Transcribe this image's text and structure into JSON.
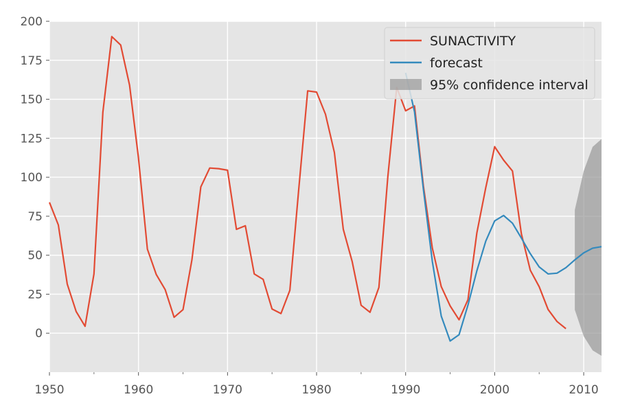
{
  "chart_data": {
    "type": "line",
    "title": "",
    "xlabel": "",
    "ylabel": "",
    "xlim": [
      1950,
      2012
    ],
    "ylim": [
      -25,
      200
    ],
    "x_ticks": [
      1950,
      1960,
      1970,
      1980,
      1990,
      2000,
      2010
    ],
    "y_ticks": [
      0,
      25,
      50,
      75,
      100,
      125,
      150,
      175,
      200
    ],
    "grid": true,
    "legend_position": "top-right",
    "colors": {
      "sunactivity": "#E24A33",
      "forecast": "#348ABD",
      "confidence": "#999999",
      "background": "#E5E5E5"
    },
    "series": [
      {
        "name": "SUNACTIVITY",
        "x": [
          1950,
          1951,
          1952,
          1953,
          1954,
          1955,
          1956,
          1957,
          1958,
          1959,
          1960,
          1961,
          1962,
          1963,
          1964,
          1965,
          1966,
          1967,
          1968,
          1969,
          1970,
          1971,
          1972,
          1973,
          1974,
          1975,
          1976,
          1977,
          1978,
          1979,
          1980,
          1981,
          1982,
          1983,
          1984,
          1985,
          1986,
          1987,
          1988,
          1989,
          1990,
          1991,
          1992,
          1993,
          1994,
          1995,
          1996,
          1997,
          1998,
          1999,
          2000,
          2001,
          2002,
          2003,
          2004,
          2005,
          2006,
          2007,
          2008
        ],
        "values": [
          83.9,
          69.4,
          31.5,
          13.9,
          4.4,
          38.0,
          141.7,
          190.2,
          184.8,
          159.0,
          112.3,
          53.9,
          37.6,
          27.9,
          10.2,
          15.1,
          47.0,
          93.8,
          105.9,
          105.5,
          104.5,
          66.6,
          68.9,
          38.0,
          34.5,
          15.5,
          12.6,
          27.5,
          92.5,
          155.4,
          154.6,
          140.4,
          115.9,
          66.6,
          45.9,
          17.9,
          13.4,
          29.4,
          100.2,
          157.6,
          142.6,
          145.7,
          94.3,
          54.6,
          29.9,
          17.5,
          8.6,
          21.5,
          64.3,
          93.3,
          119.6,
          111.0,
          104.0,
          63.7,
          40.4,
          29.8,
          15.2,
          7.5,
          2.9
        ]
      },
      {
        "name": "forecast",
        "x": [
          1990,
          1991,
          1992,
          1993,
          1994,
          1995,
          1996,
          1997,
          1998,
          1999,
          2000,
          2001,
          2002,
          2003,
          2004,
          2005,
          2006,
          2007,
          2008,
          2009,
          2010,
          2011,
          2012
        ],
        "values": [
          167.0,
          142.0,
          92.0,
          46.0,
          11.0,
          -5.0,
          -1.0,
          18.0,
          40.0,
          59.0,
          72.0,
          75.5,
          70.5,
          61.0,
          51.0,
          42.5,
          38.0,
          38.5,
          42.0,
          47.0,
          51.5,
          54.5,
          55.5
        ]
      },
      {
        "name": "95% confidence interval",
        "x": [
          2009,
          2010,
          2011,
          2012
        ],
        "lower": [
          15.0,
          -2.0,
          -11.0,
          -14.5
        ],
        "upper": [
          79.0,
          104.0,
          119.5,
          124.5
        ]
      }
    ]
  }
}
